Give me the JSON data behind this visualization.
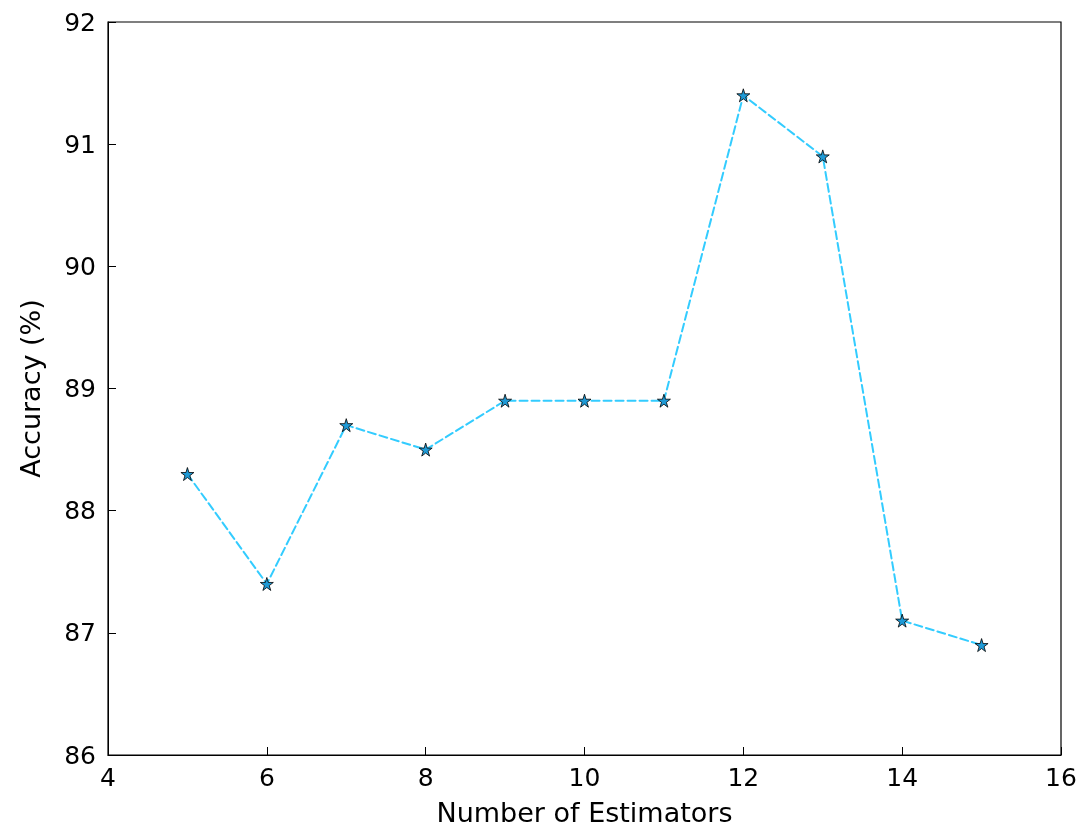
{
  "chart_data": {
    "type": "line",
    "xlabel": "Number of Estimators",
    "ylabel": "Accuracy (%)",
    "x": [
      5,
      6,
      7,
      8,
      9,
      10,
      11,
      12,
      13,
      14,
      15
    ],
    "series": [
      {
        "color": "#33ccff",
        "values": [
          88.3,
          87.4,
          88.7,
          88.5,
          88.9,
          88.9,
          88.9,
          91.4,
          90.9,
          87.1,
          86.9
        ]
      }
    ],
    "xlim": [
      4,
      16
    ],
    "xticks": [
      4,
      6,
      8,
      10,
      12,
      14,
      16
    ],
    "ylim": [
      86,
      92
    ],
    "yticks": [
      86,
      87,
      88,
      89,
      90,
      91,
      92
    ],
    "grid": false,
    "marker": "star",
    "line_style": "dashed"
  }
}
